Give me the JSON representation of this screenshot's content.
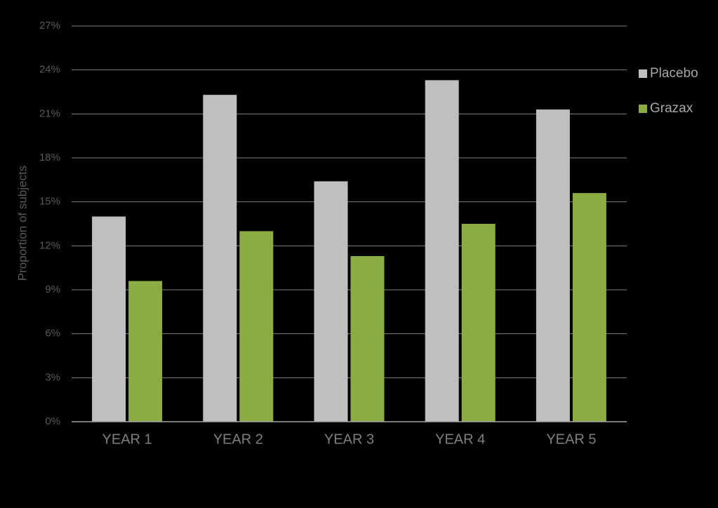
{
  "chart_data": {
    "type": "bar",
    "y_label": "Proportion of subjects",
    "categories": [
      "YEAR 1",
      "YEAR 2",
      "YEAR 3",
      "YEAR 4",
      "YEAR 5"
    ],
    "series": [
      {
        "name": "Placebo",
        "color": "#bfbfbf",
        "values": [
          14.0,
          22.3,
          16.4,
          23.3,
          21.3
        ]
      },
      {
        "name": "Grazax",
        "color": "#8aac42",
        "values": [
          9.6,
          13.0,
          11.3,
          13.5,
          15.6
        ]
      }
    ],
    "ylim": [
      0,
      27
    ],
    "yticks": [
      {
        "value": 0,
        "label": "0%"
      },
      {
        "value": 3,
        "label": "3%"
      },
      {
        "value": 6,
        "label": "6%"
      },
      {
        "value": 9,
        "label": "9%"
      },
      {
        "value": 12,
        "label": "12%"
      },
      {
        "value": 15,
        "label": "15%"
      },
      {
        "value": 18,
        "label": "18%"
      },
      {
        "value": 21,
        "label": "21%"
      },
      {
        "value": 24,
        "label": "24%"
      },
      {
        "value": 27,
        "label": "27%"
      }
    ],
    "grid": true,
    "legend": "right"
  }
}
